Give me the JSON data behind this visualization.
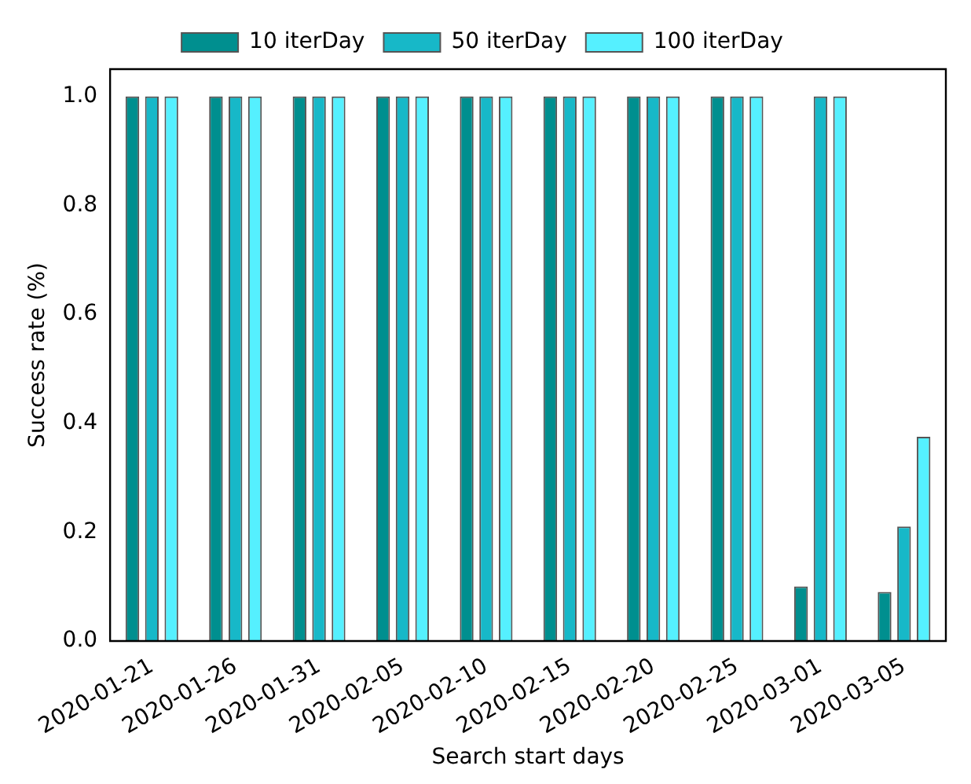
{
  "chart_data": {
    "type": "bar",
    "xlabel": "Search start days",
    "ylabel": "Success rate (%)",
    "categories": [
      "2020-01-21",
      "2020-01-26",
      "2020-01-31",
      "2020-02-05",
      "2020-02-10",
      "2020-02-15",
      "2020-02-20",
      "2020-02-25",
      "2020-03-01",
      "2020-03-05"
    ],
    "series": [
      {
        "name": "10 iterDay",
        "color": "#008f8f",
        "values": [
          1,
          1,
          1,
          1,
          1,
          1,
          1,
          1,
          0.1,
          0.09
        ]
      },
      {
        "name": "50 iterDay",
        "color": "#17b8c8",
        "values": [
          1,
          1,
          1,
          1,
          1,
          1,
          1,
          1,
          1,
          0.21
        ]
      },
      {
        "name": "100 iterDay",
        "color": "#55f0ff",
        "values": [
          1,
          1,
          1,
          1,
          1,
          1,
          1,
          1,
          1,
          0.375
        ]
      }
    ],
    "ylim": [
      0,
      1.05
    ],
    "yticks": [
      {
        "value": 0,
        "label": "0.0"
      },
      {
        "value": 0.2,
        "label": "0.2"
      },
      {
        "value": 0.4,
        "label": "0.4"
      },
      {
        "value": 0.6,
        "label": "0.6"
      },
      {
        "value": 0.8,
        "label": "0.8"
      },
      {
        "value": 1,
        "label": "1.0"
      }
    ],
    "grid": false,
    "legend": "top"
  }
}
